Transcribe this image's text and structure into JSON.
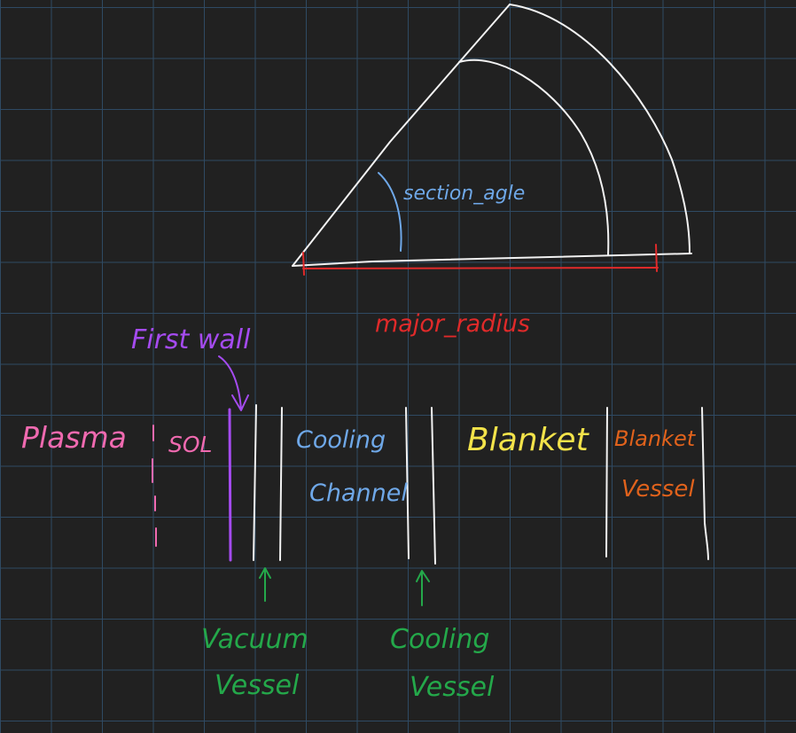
{
  "colors": {
    "background": "#212121",
    "grid": "#2f4a63",
    "white": "#f2f2f2",
    "blue": "#6fa8e8",
    "red": "#e02a2a",
    "purple": "#a54bf0",
    "pink": "#f06ab0",
    "green": "#24a84a",
    "yellow": "#f3e34a",
    "orange": "#e0621c"
  },
  "labels": {
    "section_angle": "section_agle",
    "major_radius": "major_radius",
    "first_wall": "First wall",
    "plasma": "Plasma",
    "sol": "SOL",
    "cooling_channel_line1": "Cooling",
    "cooling_channel_line2": "Channel",
    "blanket": "Blanket",
    "blanket_vessel_line1": "Blanket",
    "blanket_vessel_line2": "Vessel",
    "vacuum_vessel_line1": "Vacuum",
    "vacuum_vessel_line2": "Vessel",
    "cooling_vessel_line1": "Cooling",
    "cooling_vessel_line2": "Vessel"
  }
}
